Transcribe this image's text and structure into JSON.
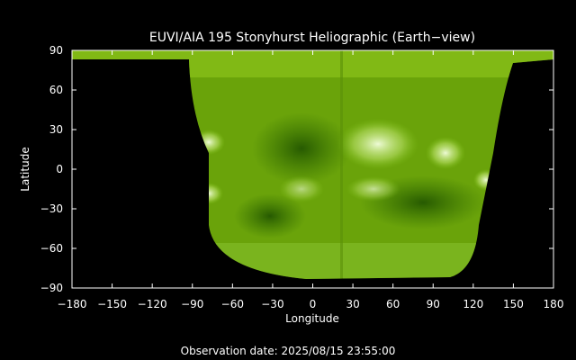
{
  "chart_data": {
    "type": "heatmap",
    "title": "EUVI/AIA 195 Stonyhurst Heliographic (Earth−view)",
    "xlabel": "Longitude",
    "ylabel": "Latitude",
    "xlim": [
      -180,
      180
    ],
    "ylim": [
      -90,
      90
    ],
    "x_ticks": [
      "−180",
      "−150",
      "−120",
      "−90",
      "−60",
      "−30",
      "0",
      "30",
      "60",
      "90",
      "120",
      "150",
      "180"
    ],
    "x_tick_values": [
      -180,
      -150,
      -120,
      -90,
      -60,
      -30,
      0,
      30,
      60,
      90,
      120,
      150,
      180
    ],
    "y_ticks": [
      "90",
      "60",
      "30",
      "0",
      "−30",
      "−60",
      "−90"
    ],
    "y_tick_values": [
      90,
      60,
      30,
      0,
      -30,
      -60,
      -90
    ],
    "grid": false,
    "colors": {
      "background": "#000000",
      "map_base": "#6aa30a",
      "map_dark": "#2f6a00",
      "map_bright": "#e8f8c8",
      "axes": "#ffffff"
    },
    "observation_date": "Observation date: 2025/08/15 23:55:00"
  }
}
